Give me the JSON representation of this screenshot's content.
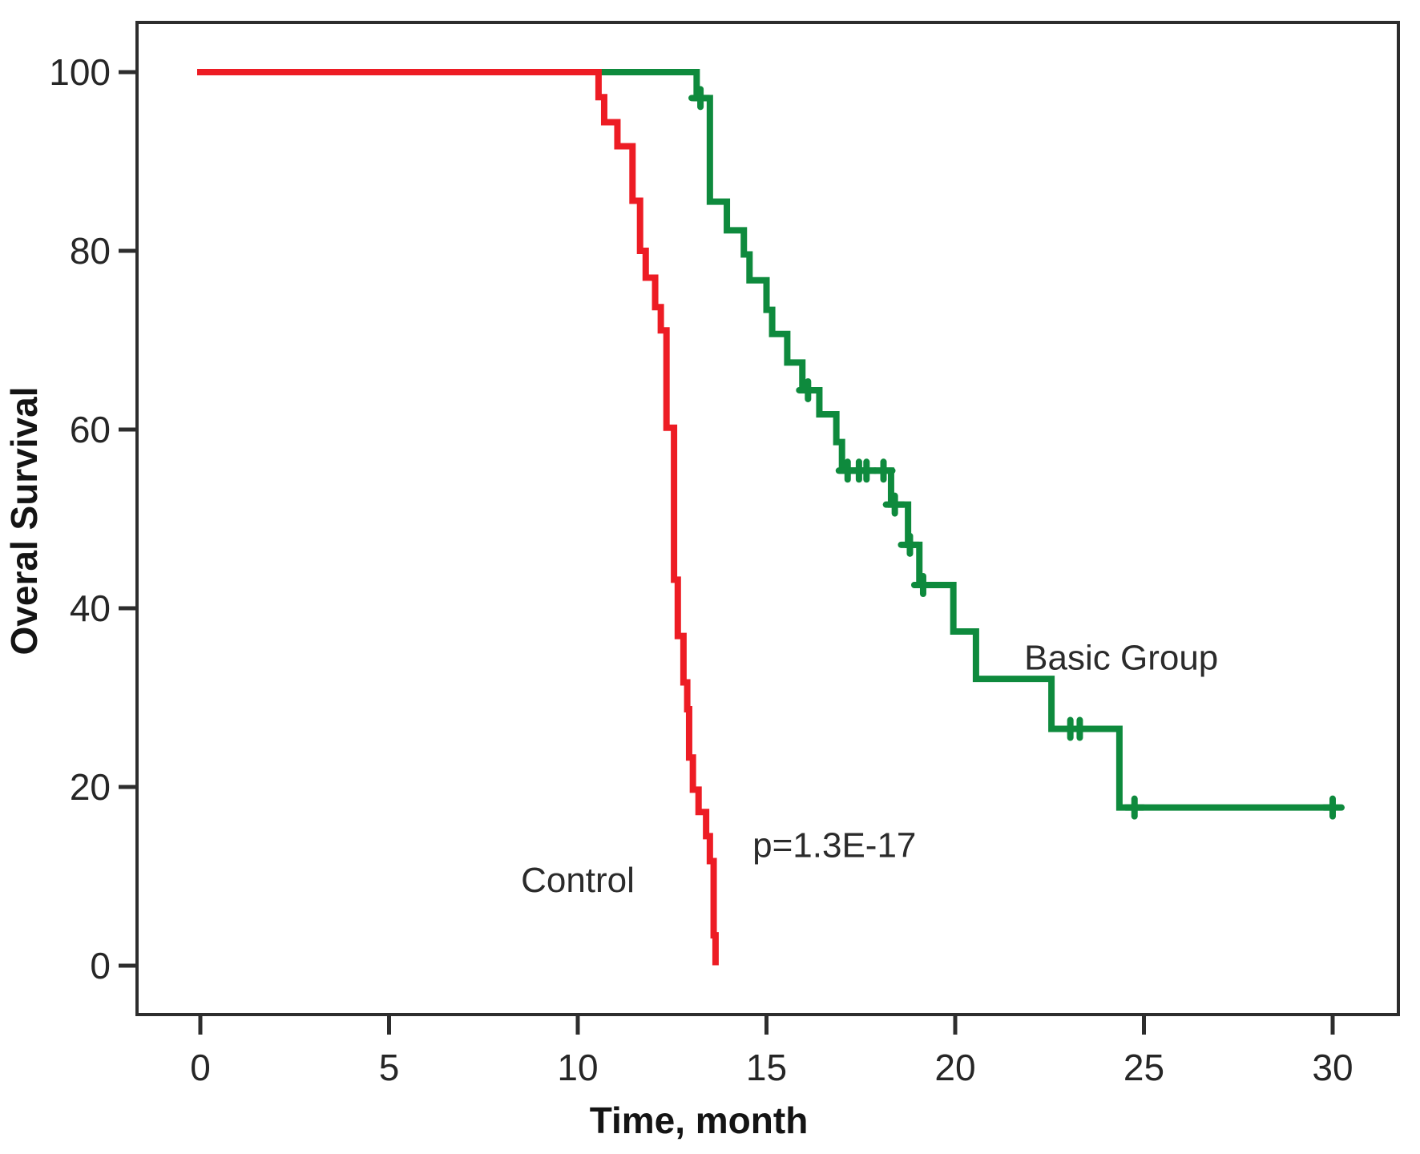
{
  "page": {
    "background": "#ffffff",
    "frame_color": "#2d2d2d",
    "text_color": "#262626"
  },
  "chart_data": {
    "type": "line",
    "subtype": "kaplan_meier_step_survival",
    "title": "",
    "xlabel": "Time, month",
    "ylabel": "Overal Survival",
    "x_ticks": [
      0,
      5,
      10,
      15,
      20,
      25,
      30
    ],
    "y_ticks": [
      0,
      20,
      40,
      60,
      80,
      100
    ],
    "xlim": [
      -1.7,
      31.7
    ],
    "ylim": [
      -5.6,
      105.6
    ],
    "grid": false,
    "legend_position": "none (inline curve labels)",
    "censor_marker": "plus",
    "series": [
      {
        "name": "Basic Group",
        "color": "#0e8a3d",
        "start": [
          0,
          100
        ],
        "steps": [
          [
            13.15,
            97.1
          ],
          [
            13.5,
            85.5
          ],
          [
            13.95,
            82.3
          ],
          [
            14.4,
            79.6
          ],
          [
            14.55,
            76.7
          ],
          [
            15.0,
            73.4
          ],
          [
            15.15,
            70.7
          ],
          [
            15.55,
            67.5
          ],
          [
            15.95,
            64.4
          ],
          [
            16.4,
            61.7
          ],
          [
            16.85,
            58.6
          ],
          [
            17.0,
            55.4
          ],
          [
            18.3,
            51.6
          ],
          [
            18.75,
            47.1
          ],
          [
            19.05,
            42.6
          ],
          [
            19.95,
            37.4
          ],
          [
            20.55,
            32.1
          ],
          [
            22.55,
            26.5
          ],
          [
            24.35,
            17.7
          ]
        ],
        "end_x": 30.0,
        "censors": [
          [
            13.25,
            97.1
          ],
          [
            16.1,
            64.4
          ],
          [
            17.15,
            55.4
          ],
          [
            17.45,
            55.4
          ],
          [
            17.65,
            55.4
          ],
          [
            18.1,
            55.4
          ],
          [
            18.4,
            51.6
          ],
          [
            18.8,
            47.1
          ],
          [
            19.15,
            42.6
          ],
          [
            23.05,
            26.5
          ],
          [
            23.3,
            26.5
          ],
          [
            24.75,
            17.7
          ],
          [
            30.0,
            17.7
          ]
        ]
      },
      {
        "name": "Control",
        "color": "#ed1c24",
        "start": [
          0,
          100
        ],
        "steps": [
          [
            10.55,
            97.2
          ],
          [
            10.7,
            94.4
          ],
          [
            11.05,
            91.7
          ],
          [
            11.45,
            85.6
          ],
          [
            11.65,
            80.0
          ],
          [
            11.8,
            77.0
          ],
          [
            12.05,
            73.7
          ],
          [
            12.2,
            71.1
          ],
          [
            12.35,
            60.2
          ],
          [
            12.55,
            43.2
          ],
          [
            12.65,
            36.9
          ],
          [
            12.8,
            31.7
          ],
          [
            12.9,
            28.7
          ],
          [
            12.95,
            23.3
          ],
          [
            13.05,
            19.7
          ],
          [
            13.2,
            17.2
          ],
          [
            13.4,
            14.5
          ],
          [
            13.5,
            11.7
          ],
          [
            13.6,
            3.4
          ],
          [
            13.65,
            0.4
          ]
        ],
        "end_x": 13.65,
        "censors": []
      }
    ],
    "annotations": [
      {
        "name": "basic-group-label",
        "text": "Basic Group",
        "x": 24.4,
        "y": 34.5
      },
      {
        "name": "control-label",
        "text": "Control",
        "x": 10.0,
        "y": 9.6
      },
      {
        "name": "p-value-label",
        "text": "p=1.3E-17",
        "x": 16.8,
        "y": 13.5
      }
    ]
  }
}
